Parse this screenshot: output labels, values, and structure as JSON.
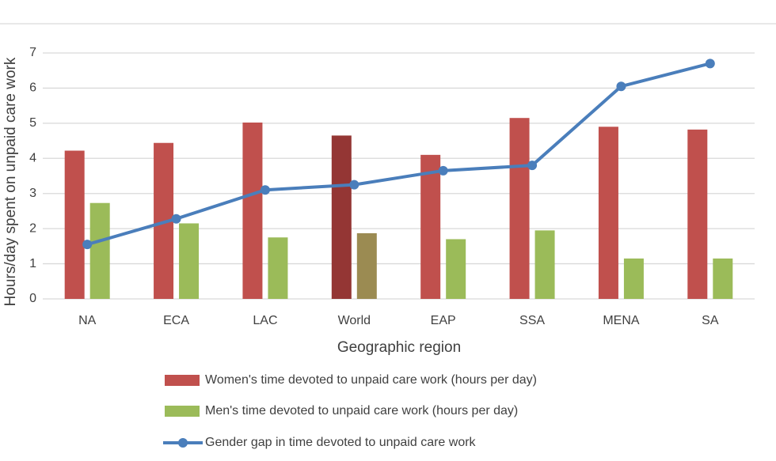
{
  "chart_data": {
    "type": "bar_line",
    "y_label": "Hours/day spent on unpaid care work",
    "x_label": "Geographic region",
    "categories": [
      "NA",
      "ECA",
      "LAC",
      "World",
      "EAP",
      "SSA",
      "MENA",
      "SA"
    ],
    "series": [
      {
        "name": "Women's time devoted to unpaid care work (hours per day)",
        "type": "bar",
        "color": "#c0504d",
        "colors": [
          "#c0504d",
          "#c0504d",
          "#c0504d",
          "#943634",
          "#c0504d",
          "#c0504d",
          "#c0504d",
          "#c0504d"
        ],
        "values": [
          4.22,
          4.44,
          5.02,
          4.65,
          4.1,
          5.15,
          4.9,
          4.82
        ]
      },
      {
        "name": "Men's time devoted to unpaid care work (hours per day)",
        "type": "bar",
        "color": "#9bbb59",
        "colors": [
          "#9bbb59",
          "#9bbb59",
          "#9bbb59",
          "#9b8b52",
          "#9bbb59",
          "#9bbb59",
          "#9bbb59",
          "#9bbb59"
        ],
        "values": [
          2.73,
          2.15,
          1.75,
          1.87,
          1.7,
          1.95,
          1.15,
          1.15
        ]
      },
      {
        "name": "Gender gap in time devoted to unpaid care work",
        "type": "line",
        "color": "#4a7ebb",
        "values": [
          1.55,
          2.28,
          3.1,
          3.25,
          3.65,
          3.8,
          6.05,
          6.7
        ]
      }
    ],
    "ylim": [
      0,
      7
    ],
    "yticks": [
      0,
      1,
      2,
      3,
      4,
      5,
      6,
      7
    ],
    "grid": true
  }
}
